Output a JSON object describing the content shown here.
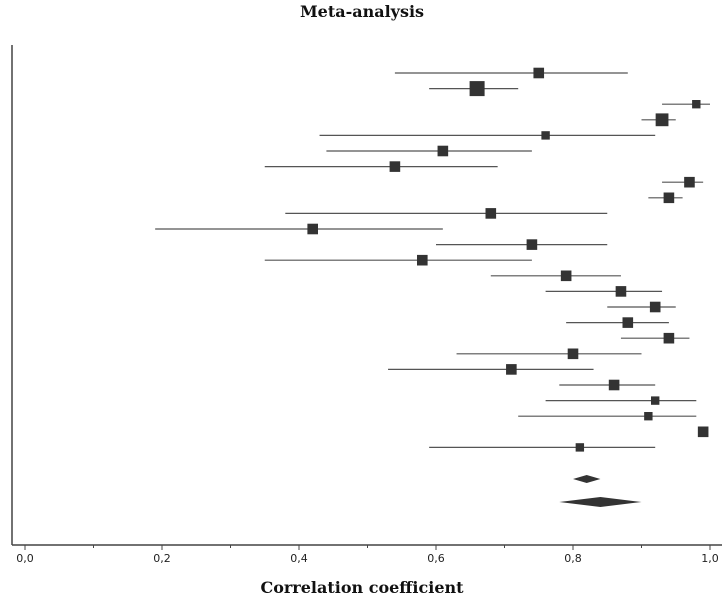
{
  "chart_data": {
    "type": "forest",
    "title": "Meta-analysis",
    "xlabel": "Correlation coefficient",
    "ylabel": "",
    "xlim": [
      0.0,
      1.0
    ],
    "x_ticks": [
      0.0,
      0.2,
      0.4,
      0.6,
      0.8,
      1.0
    ],
    "x_tick_labels": [
      "0,0",
      "0,2",
      "0,4",
      "0,6",
      "0,8",
      "1,0"
    ],
    "grid": false,
    "colors": {
      "marker": "#333333",
      "line": "#555555",
      "axis": "#444444"
    },
    "studies": [
      {
        "estimate": 0.75,
        "lower": 0.54,
        "upper": 0.88,
        "weight": 3
      },
      {
        "estimate": 0.66,
        "lower": 0.59,
        "upper": 0.72,
        "weight": 5
      },
      {
        "estimate": 0.98,
        "lower": 0.93,
        "upper": 1.0,
        "weight": 2
      },
      {
        "estimate": 0.93,
        "lower": 0.9,
        "upper": 0.95,
        "weight": 4
      },
      {
        "estimate": 0.76,
        "lower": 0.43,
        "upper": 0.92,
        "weight": 2
      },
      {
        "estimate": 0.61,
        "lower": 0.44,
        "upper": 0.74,
        "weight": 3
      },
      {
        "estimate": 0.54,
        "lower": 0.35,
        "upper": 0.69,
        "weight": 3
      },
      {
        "estimate": 0.97,
        "lower": 0.93,
        "upper": 0.99,
        "weight": 3
      },
      {
        "estimate": 0.94,
        "lower": 0.91,
        "upper": 0.96,
        "weight": 3
      },
      {
        "estimate": 0.68,
        "lower": 0.38,
        "upper": 0.85,
        "weight": 3
      },
      {
        "estimate": 0.42,
        "lower": 0.19,
        "upper": 0.61,
        "weight": 3
      },
      {
        "estimate": 0.74,
        "lower": 0.6,
        "upper": 0.85,
        "weight": 3
      },
      {
        "estimate": 0.58,
        "lower": 0.35,
        "upper": 0.74,
        "weight": 3
      },
      {
        "estimate": 0.79,
        "lower": 0.68,
        "upper": 0.87,
        "weight": 3
      },
      {
        "estimate": 0.87,
        "lower": 0.76,
        "upper": 0.93,
        "weight": 3
      },
      {
        "estimate": 0.92,
        "lower": 0.85,
        "upper": 0.95,
        "weight": 3
      },
      {
        "estimate": 0.88,
        "lower": 0.79,
        "upper": 0.94,
        "weight": 3
      },
      {
        "estimate": 0.94,
        "lower": 0.87,
        "upper": 0.97,
        "weight": 3
      },
      {
        "estimate": 0.8,
        "lower": 0.63,
        "upper": 0.9,
        "weight": 3
      },
      {
        "estimate": 0.71,
        "lower": 0.53,
        "upper": 0.83,
        "weight": 3
      },
      {
        "estimate": 0.86,
        "lower": 0.78,
        "upper": 0.92,
        "weight": 3
      },
      {
        "estimate": 0.92,
        "lower": 0.76,
        "upper": 0.98,
        "weight": 2
      },
      {
        "estimate": 0.91,
        "lower": 0.72,
        "upper": 0.98,
        "weight": 2
      },
      {
        "estimate": 0.99,
        "lower": 0.99,
        "upper": 0.99,
        "weight": 3
      },
      {
        "estimate": 0.81,
        "lower": 0.59,
        "upper": 0.92,
        "weight": 2
      }
    ],
    "summary": [
      {
        "estimate": 0.82,
        "lower": 0.8,
        "upper": 0.84
      },
      {
        "estimate": 0.84,
        "lower": 0.78,
        "upper": 0.9
      }
    ]
  }
}
